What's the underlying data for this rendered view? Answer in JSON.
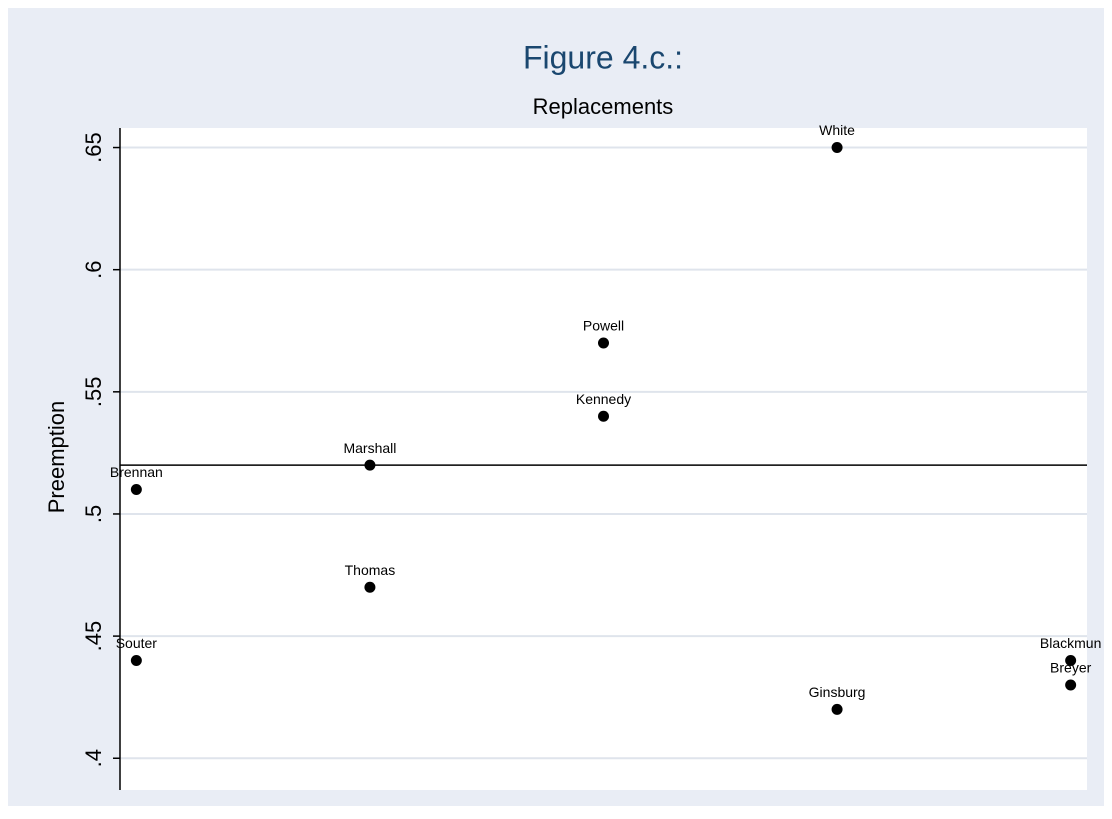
{
  "chart_data": {
    "type": "scatter",
    "title": "Figure 4.c.:",
    "subtitle": "Replacements",
    "y_label": "Preemption",
    "x": [
      1,
      1,
      2,
      2,
      3,
      3,
      4,
      4,
      5,
      5
    ],
    "values": [
      0.51,
      0.44,
      0.52,
      0.47,
      0.57,
      0.54,
      0.65,
      0.42,
      0.44,
      0.43
    ],
    "point_labels": [
      "Brennan",
      "Souter",
      "Marshall",
      "Thomas",
      "Powell",
      "Kennedy",
      "White",
      "Ginsburg",
      "Blackmun",
      "Breyer"
    ],
    "color": "#000000",
    "reference_line": 0.52,
    "xlim": [
      0.93,
      5.07
    ],
    "ylim": [
      0.387,
      0.658
    ],
    "yticks": [
      {
        "value": 0.4,
        "label": ".4"
      },
      {
        "value": 0.45,
        "label": ".45"
      },
      {
        "value": 0.5,
        "label": ".5"
      },
      {
        "value": 0.55,
        "label": ".55"
      },
      {
        "value": 0.6,
        "label": ".6"
      },
      {
        "value": 0.65,
        "label": ".65"
      }
    ],
    "grid": true
  }
}
